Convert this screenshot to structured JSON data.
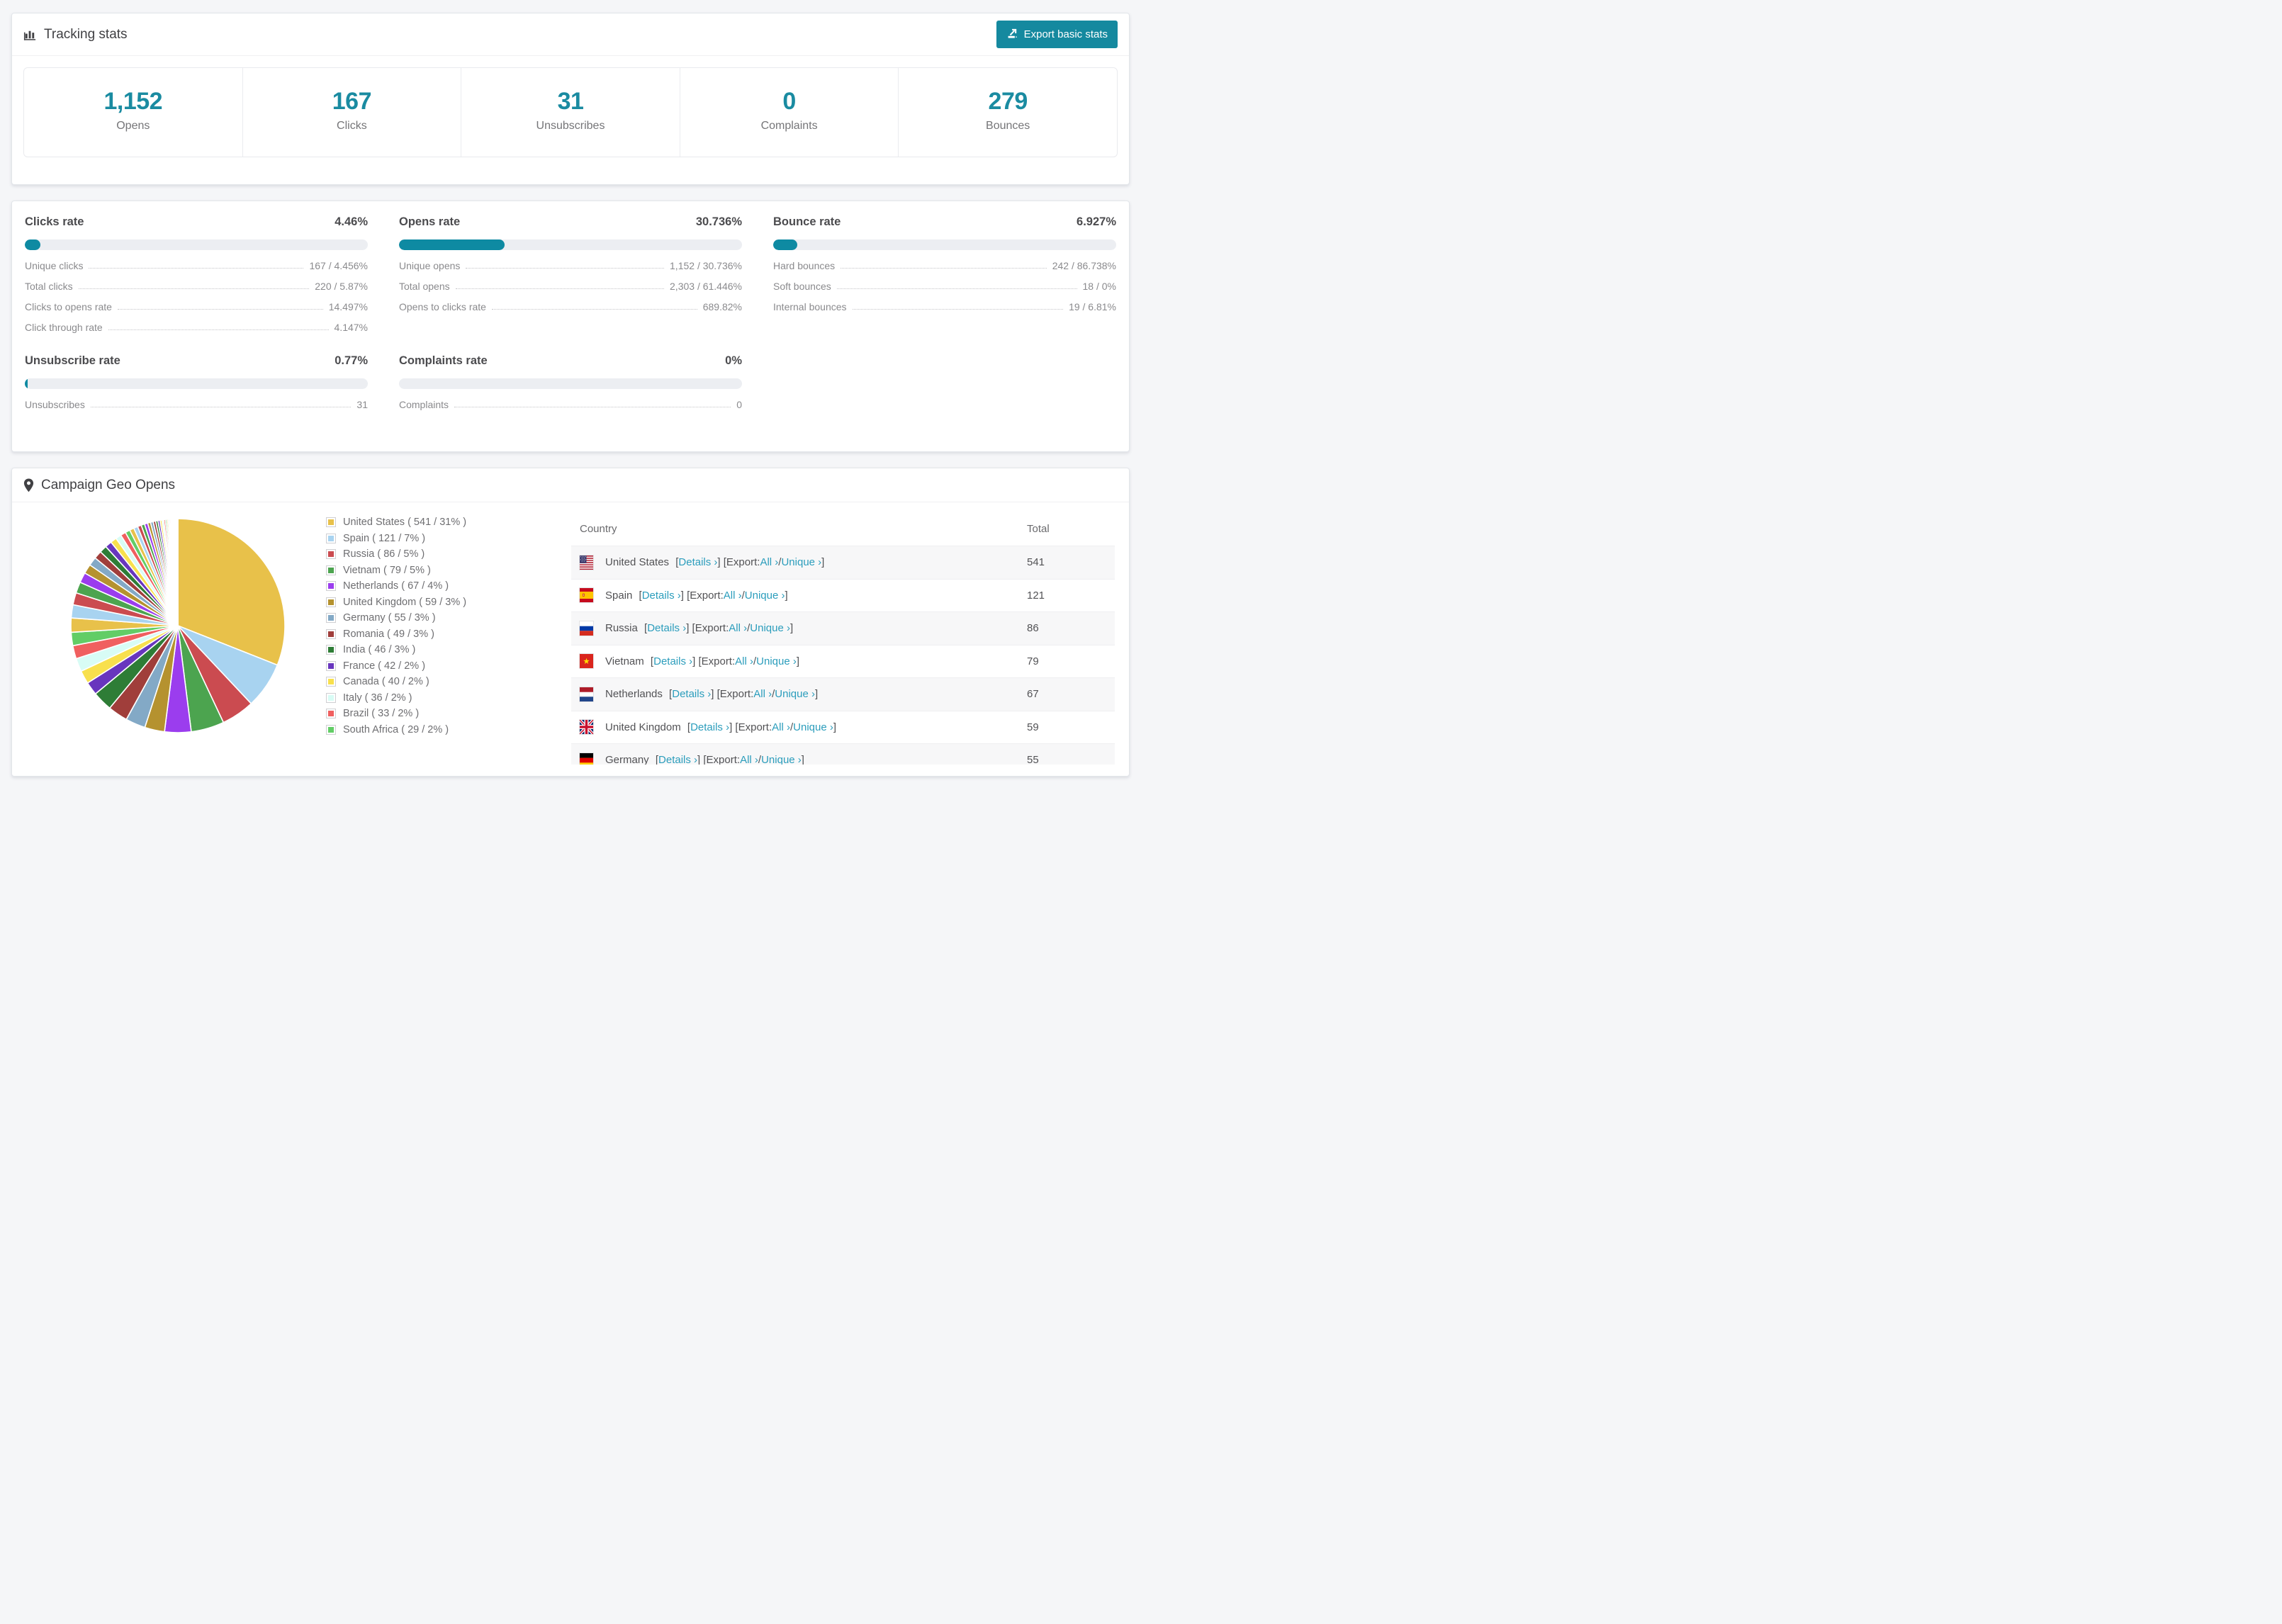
{
  "page": {
    "background": "#f5f6f8",
    "accent": "#15899f",
    "stat_color": "#1a8ba1",
    "link_color": "#2b9dbc"
  },
  "tracking": {
    "title": "Tracking stats",
    "icon": "bar-chart-icon",
    "export_button": "Export basic stats",
    "stats": [
      {
        "value": "1,152",
        "label": "Opens"
      },
      {
        "value": "167",
        "label": "Clicks"
      },
      {
        "value": "31",
        "label": "Unsubscribes"
      },
      {
        "value": "0",
        "label": "Complaints"
      },
      {
        "value": "279",
        "label": "Bounces"
      }
    ]
  },
  "rates": [
    {
      "title": "Clicks rate",
      "value": "4.46%",
      "pct": 4.46,
      "rows": [
        {
          "label": "Unique clicks",
          "value": "167 / 4.456%"
        },
        {
          "label": "Total clicks",
          "value": "220 / 5.87%"
        },
        {
          "label": "Clicks to opens rate",
          "value": "14.497%"
        },
        {
          "label": "Click through rate",
          "value": "4.147%"
        }
      ]
    },
    {
      "title": "Opens rate",
      "value": "30.736%",
      "pct": 30.736,
      "rows": [
        {
          "label": "Unique opens",
          "value": "1,152 / 30.736%"
        },
        {
          "label": "Total opens",
          "value": "2,303 / 61.446%"
        },
        {
          "label": "Opens to clicks rate",
          "value": "689.82%"
        }
      ]
    },
    {
      "title": "Bounce rate",
      "value": "6.927%",
      "pct": 6.927,
      "rows": [
        {
          "label": "Hard bounces",
          "value": "242 / 86.738%"
        },
        {
          "label": "Soft bounces",
          "value": "18 / 0%"
        },
        {
          "label": "Internal bounces",
          "value": "19 / 6.81%"
        }
      ]
    },
    {
      "title": "Unsubscribe rate",
      "value": "0.77%",
      "pct": 0.77,
      "rows": [
        {
          "label": "Unsubscribes",
          "value": "31"
        }
      ]
    },
    {
      "title": "Complaints rate",
      "value": "0%",
      "pct": 0,
      "rows": [
        {
          "label": "Complaints",
          "value": "0"
        }
      ]
    }
  ],
  "geo": {
    "title": "Campaign Geo Opens",
    "icon": "map-pin-icon",
    "table": {
      "headers": [
        "Country",
        "Total"
      ],
      "link_labels": {
        "details": "Details ›",
        "export_prefix": "Export:",
        "all": "All ›",
        "unique": "Unique ›"
      },
      "rows": [
        {
          "name": "United States",
          "flag": "us",
          "total": "541"
        },
        {
          "name": "Spain",
          "flag": "es",
          "total": "121"
        },
        {
          "name": "Russia",
          "flag": "ru",
          "total": "86"
        },
        {
          "name": "Vietnam",
          "flag": "vn",
          "total": "79"
        },
        {
          "name": "Netherlands",
          "flag": "nl",
          "total": "67"
        },
        {
          "name": "United Kingdom",
          "flag": "gb",
          "total": "59"
        },
        {
          "name": "Germany",
          "flag": "de",
          "total": "55"
        }
      ]
    }
  },
  "chart_data": {
    "type": "pie",
    "title": "Campaign Geo Opens",
    "legend_position": "right-of-chart",
    "start_angle_deg": -90,
    "direction": "clockwise",
    "series": [
      {
        "label": "United States",
        "value": 541,
        "pct": 31,
        "color": "#E8C14A"
      },
      {
        "label": "Spain",
        "value": 121,
        "pct": 7,
        "color": "#A8D3F0"
      },
      {
        "label": "Russia",
        "value": 86,
        "pct": 5,
        "color": "#CB4B50"
      },
      {
        "label": "Vietnam",
        "value": 79,
        "pct": 5,
        "color": "#4CA44F"
      },
      {
        "label": "Netherlands",
        "value": 67,
        "pct": 4,
        "color": "#9B3DEE"
      },
      {
        "label": "United Kingdom",
        "value": 59,
        "pct": 3,
        "color": "#B5922F"
      },
      {
        "label": "Germany",
        "value": 55,
        "pct": 3,
        "color": "#83A9C6"
      },
      {
        "label": "Romania",
        "value": 49,
        "pct": 3,
        "color": "#A03E3B"
      },
      {
        "label": "India",
        "value": 46,
        "pct": 3,
        "color": "#2E7D36"
      },
      {
        "label": "France",
        "value": 42,
        "pct": 2,
        "color": "#6836BE"
      },
      {
        "label": "Canada",
        "value": 40,
        "pct": 2,
        "color": "#F8E04D"
      },
      {
        "label": "Italy",
        "value": 36,
        "pct": 2,
        "color": "#D8FCF5"
      },
      {
        "label": "Brazil",
        "value": 33,
        "pct": 2,
        "color": "#F05F5F"
      },
      {
        "label": "South Africa",
        "value": 29,
        "pct": 2,
        "color": "#62CD66"
      }
    ],
    "others_unlabeled_slices": {
      "total_pct": 26,
      "count": 40,
      "note": "many small unlabeled countries, colors cycle through palette"
    }
  }
}
